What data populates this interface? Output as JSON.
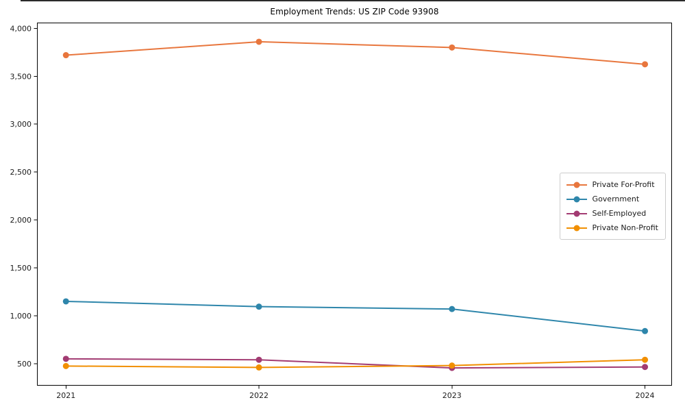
{
  "chart_data": {
    "type": "line",
    "title": "Employment Trends: US ZIP Code 93908",
    "x": [
      2021,
      2022,
      2023,
      2024
    ],
    "series": [
      {
        "name": "Private For-Profit",
        "color": "#E8763D",
        "values": [
          3720,
          3860,
          3800,
          3625
        ]
      },
      {
        "name": "Government",
        "color": "#2E86AB",
        "values": [
          1150,
          1095,
          1070,
          840
        ]
      },
      {
        "name": "Self-Employed",
        "color": "#A23B72",
        "values": [
          550,
          540,
          455,
          465
        ]
      },
      {
        "name": "Private Non-Profit",
        "color": "#F18F01",
        "values": [
          475,
          460,
          480,
          540
        ]
      }
    ],
    "xlabel": "",
    "ylabel": "",
    "xlim": [
      2020.85,
      2024.14
    ],
    "ylim": [
      270,
      4060
    ],
    "yticks": [
      500,
      1000,
      1500,
      2000,
      2500,
      3000,
      3500,
      4000
    ],
    "ytick_format": "comma",
    "grid": false,
    "legend_position": "center-right",
    "axis_color": "#000000",
    "tick_label_color": "#1a1a1a"
  }
}
